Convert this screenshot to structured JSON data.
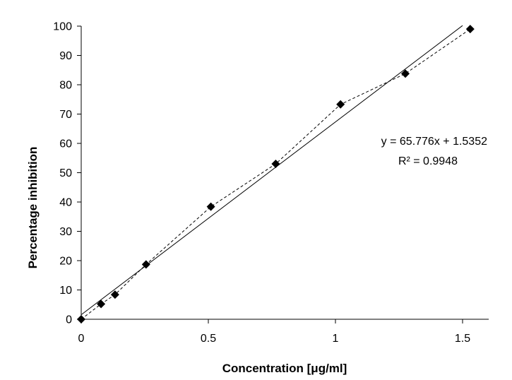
{
  "chart_data": {
    "type": "scatter",
    "xlabel": "Concentration [μg/ml]",
    "ylabel": "Percentage inhibition",
    "xlim": [
      0,
      1.6
    ],
    "ylim": [
      0,
      100
    ],
    "x_ticks": [
      0,
      0.5,
      1,
      1.5
    ],
    "x_tick_labels": [
      "0",
      "0.5",
      "1",
      "1.5"
    ],
    "y_ticks": [
      0,
      10,
      20,
      30,
      40,
      50,
      60,
      70,
      80,
      90,
      100
    ],
    "y_tick_labels": [
      "0",
      "10",
      "20",
      "30",
      "40",
      "50",
      "60",
      "70",
      "80",
      "90",
      "100"
    ],
    "grid": false,
    "marker": "diamond",
    "connector": "dashed",
    "series": [
      {
        "x": [
          0,
          0.078,
          0.133,
          0.255,
          0.51,
          0.765,
          1.02,
          1.275,
          1.53
        ],
        "y": [
          0,
          5.2,
          8.4,
          18.7,
          38.4,
          53.0,
          73.3,
          83.8,
          99.0
        ],
        "color": "#000000"
      }
    ],
    "trendline": {
      "slope": 65.776,
      "intercept": 1.5352,
      "x_range": [
        0,
        1.5
      ],
      "style": "solid",
      "color": "#000000"
    },
    "annotations": {
      "equation": "y = 65.776x + 1.5352",
      "r_squared": "R² = 0.9948"
    }
  }
}
